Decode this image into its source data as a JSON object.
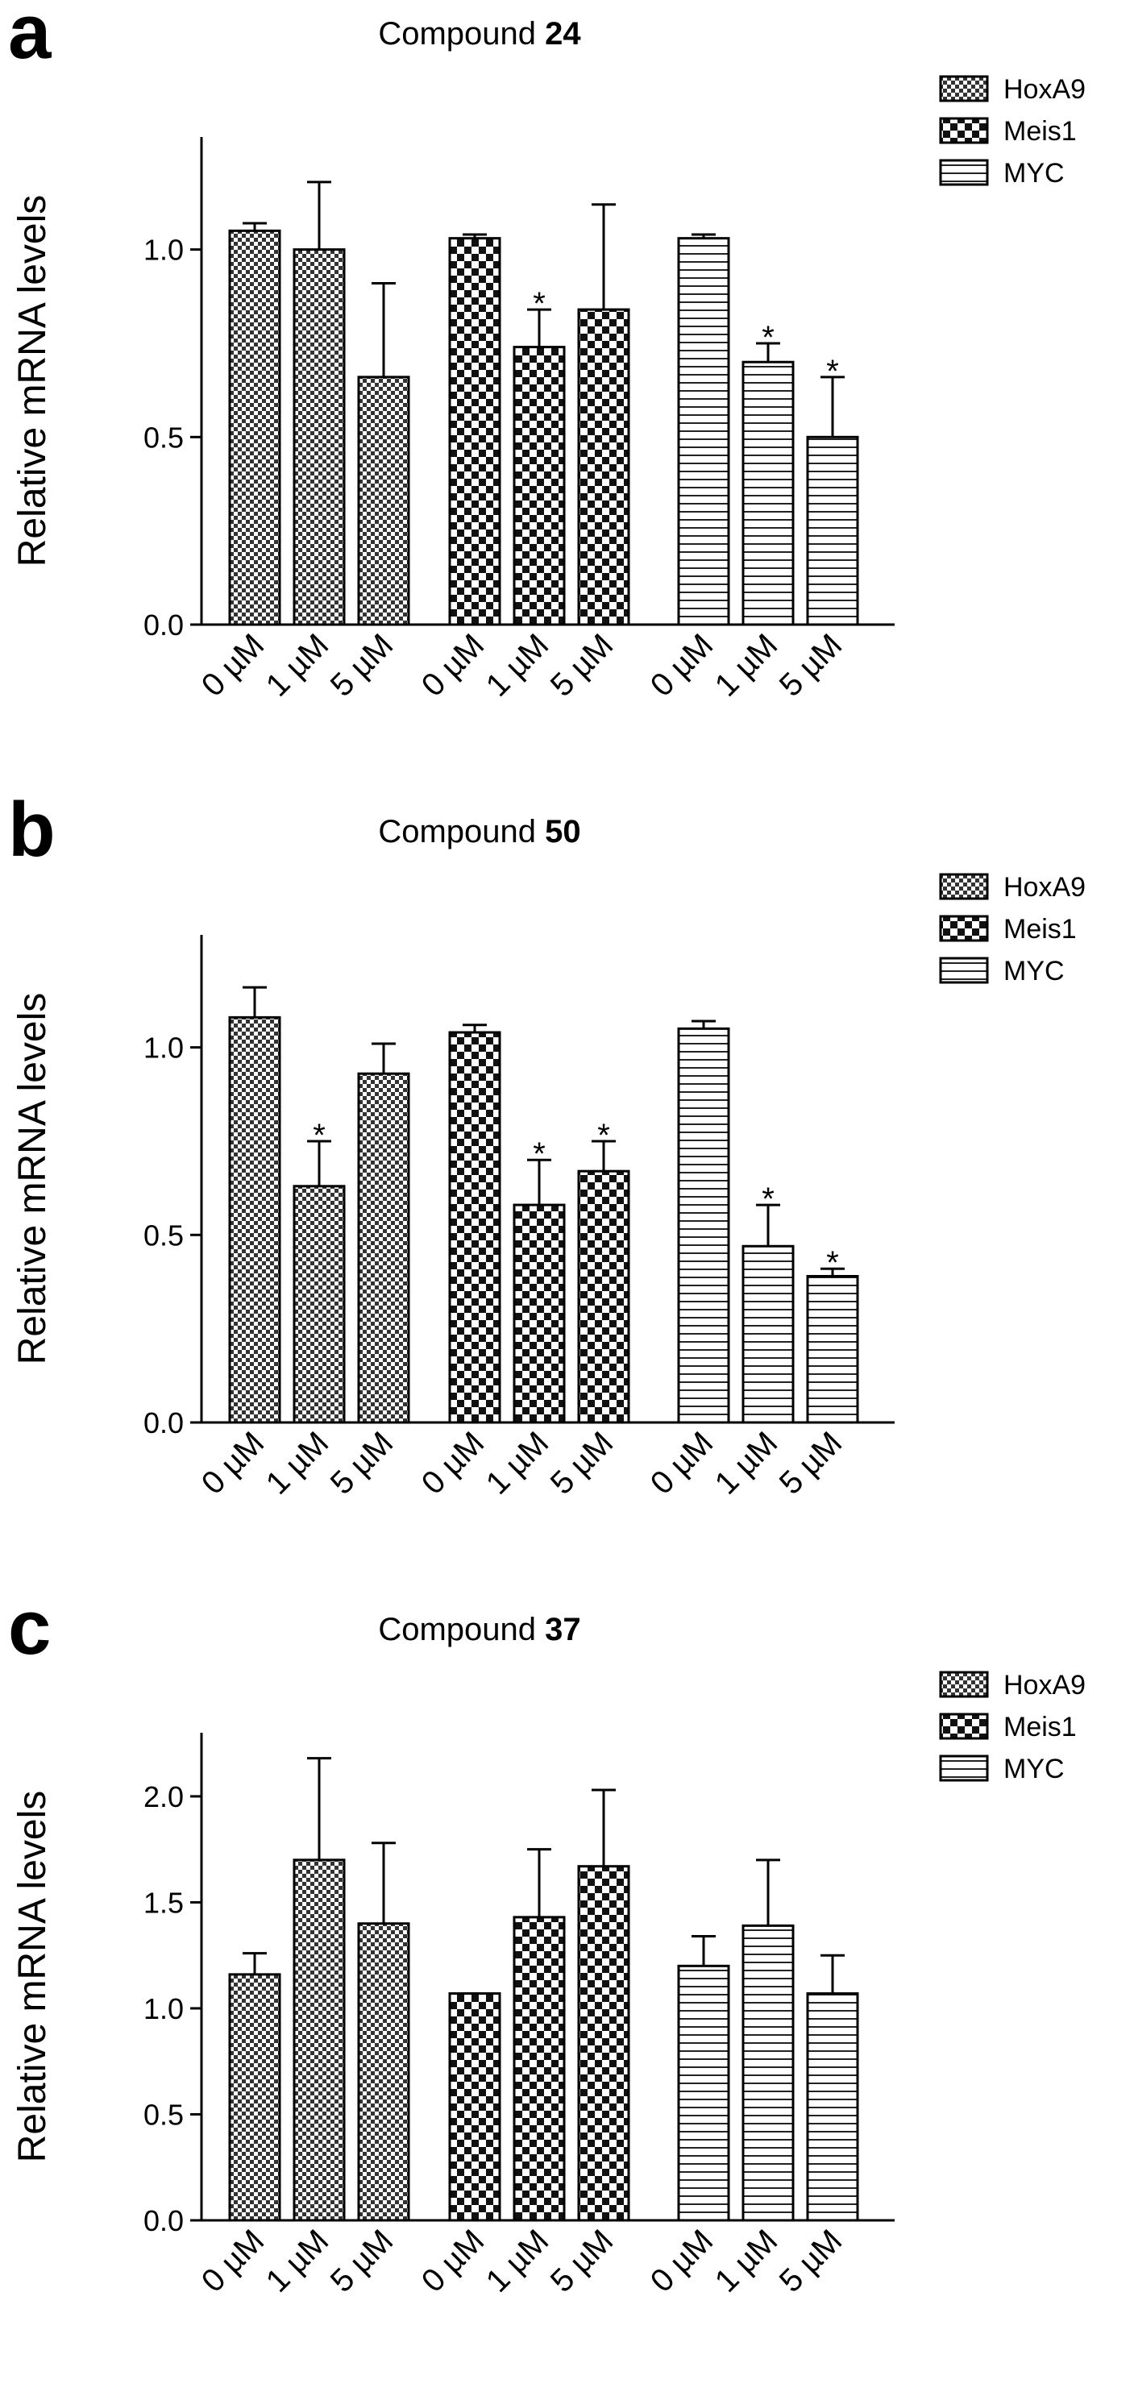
{
  "chart_data": [
    {
      "type": "bar",
      "panel_label": "a",
      "title_prefix": "Compound ",
      "title_bold": "24",
      "ylabel": "Relative mRNA levels",
      "ylim": [
        0,
        1.3
      ],
      "yticks": [
        "0.0",
        "0.5",
        "1.0"
      ],
      "categories": [
        "0 µM",
        "1 µM",
        "5 µM"
      ],
      "legend": [
        "HoxA9",
        "Meis1",
        "MYC"
      ],
      "legend_placement": "top-right",
      "series": [
        {
          "name": "HoxA9",
          "pattern": "fine-check",
          "values": [
            1.05,
            1.0,
            0.66
          ],
          "errors": [
            0.02,
            0.18,
            0.25
          ],
          "significant": [
            false,
            false,
            false
          ]
        },
        {
          "name": "Meis1",
          "pattern": "coarse-check",
          "values": [
            1.03,
            0.74,
            0.84
          ],
          "errors": [
            0.01,
            0.1,
            0.28
          ],
          "significant": [
            false,
            true,
            false
          ]
        },
        {
          "name": "MYC",
          "pattern": "horizontal-lines",
          "values": [
            1.03,
            0.7,
            0.5
          ],
          "errors": [
            0.01,
            0.05,
            0.16
          ],
          "significant": [
            false,
            true,
            true
          ]
        }
      ]
    },
    {
      "type": "bar",
      "panel_label": "b",
      "title_prefix": "Compound ",
      "title_bold": "50",
      "ylabel": "Relative mRNA levels",
      "ylim": [
        0,
        1.3
      ],
      "yticks": [
        "0.0",
        "0.5",
        "1.0"
      ],
      "categories": [
        "0 µM",
        "1 µM",
        "5 µM"
      ],
      "legend": [
        "HoxA9",
        "Meis1",
        "MYC"
      ],
      "legend_placement": "top-right",
      "series": [
        {
          "name": "HoxA9",
          "pattern": "fine-check",
          "values": [
            1.08,
            0.63,
            0.93
          ],
          "errors": [
            0.08,
            0.12,
            0.08
          ],
          "significant": [
            false,
            true,
            false
          ]
        },
        {
          "name": "Meis1",
          "pattern": "coarse-check",
          "values": [
            1.04,
            0.58,
            0.67
          ],
          "errors": [
            0.02,
            0.12,
            0.08
          ],
          "significant": [
            false,
            true,
            true
          ]
        },
        {
          "name": "MYC",
          "pattern": "horizontal-lines",
          "values": [
            1.05,
            0.47,
            0.39
          ],
          "errors": [
            0.02,
            0.11,
            0.02
          ],
          "significant": [
            false,
            true,
            true
          ]
        }
      ]
    },
    {
      "type": "bar",
      "panel_label": "c",
      "title_prefix": "Compound ",
      "title_bold": "37",
      "ylabel": "Relative mRNA levels",
      "ylim": [
        0,
        2.3
      ],
      "yticks": [
        "0.0",
        "0.5",
        "1.0",
        "1.5",
        "2.0"
      ],
      "categories": [
        "0 µM",
        "1 µM",
        "5 µM"
      ],
      "legend": [
        "HoxA9",
        "Meis1",
        "MYC"
      ],
      "legend_placement": "top-right",
      "series": [
        {
          "name": "HoxA9",
          "pattern": "fine-check",
          "values": [
            1.16,
            1.7,
            1.4
          ],
          "errors": [
            0.1,
            0.48,
            0.38
          ],
          "significant": [
            false,
            false,
            false
          ]
        },
        {
          "name": "Meis1",
          "pattern": "coarse-check",
          "values": [
            1.07,
            1.43,
            1.67
          ],
          "errors": [
            0.0,
            0.32,
            0.36
          ],
          "significant": [
            false,
            false,
            false
          ]
        },
        {
          "name": "MYC",
          "pattern": "horizontal-lines",
          "values": [
            1.2,
            1.39,
            1.07
          ],
          "errors": [
            0.14,
            0.31,
            0.18
          ],
          "significant": [
            false,
            false,
            false
          ]
        }
      ]
    }
  ]
}
